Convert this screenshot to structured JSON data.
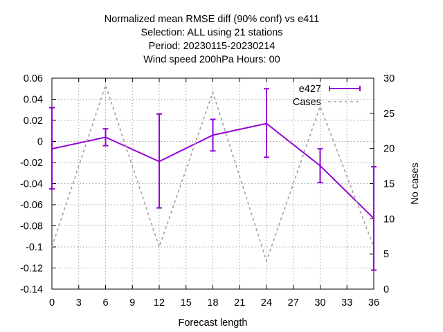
{
  "chart_data": {
    "type": "line",
    "title_lines": [
      "Normalized mean RMSE diff (90% conf) vs e411",
      "Selection: ALL using     21 stations",
      "Period: 20230115-20230214",
      "Wind speed 200hPa   Hours:  00"
    ],
    "xlabel": "Forecast length",
    "ylabel": "",
    "y2label": "No cases",
    "xlim": [
      0,
      36
    ],
    "ylim": [
      -0.14,
      0.06
    ],
    "y2lim": [
      0,
      30
    ],
    "x_ticks": [
      0,
      3,
      6,
      9,
      12,
      15,
      18,
      21,
      24,
      27,
      30,
      33,
      36
    ],
    "y_ticks": [
      "-0.14",
      "-0.12",
      "-0.1",
      "-0.08",
      "-0.06",
      "-0.04",
      "-0.02",
      "0",
      "0.02",
      "0.04",
      "0.06"
    ],
    "y2_ticks": [
      "0",
      "5",
      "10",
      "15",
      "20",
      "25",
      "30"
    ],
    "grid": true,
    "legend_position": "top-right",
    "series": [
      {
        "name": "e427",
        "axis": "y",
        "color": "#9400d3",
        "style": "line-errorbars",
        "x": [
          0,
          6,
          12,
          18,
          24,
          30,
          36
        ],
        "y": [
          -0.007,
          0.004,
          -0.019,
          0.006,
          0.017,
          -0.023,
          -0.073
        ],
        "err_low": [
          -0.045,
          -0.004,
          -0.063,
          -0.009,
          -0.015,
          -0.039,
          -0.122
        ],
        "err_high": [
          0.032,
          0.012,
          0.026,
          0.021,
          0.05,
          -0.007,
          -0.024
        ]
      },
      {
        "name": "Cases",
        "axis": "y2",
        "color": "#a0a0a0",
        "style": "dashed",
        "x": [
          0,
          6,
          12,
          18,
          24,
          30,
          36
        ],
        "y": [
          6,
          29,
          6,
          28,
          4,
          26,
          6
        ]
      }
    ]
  }
}
